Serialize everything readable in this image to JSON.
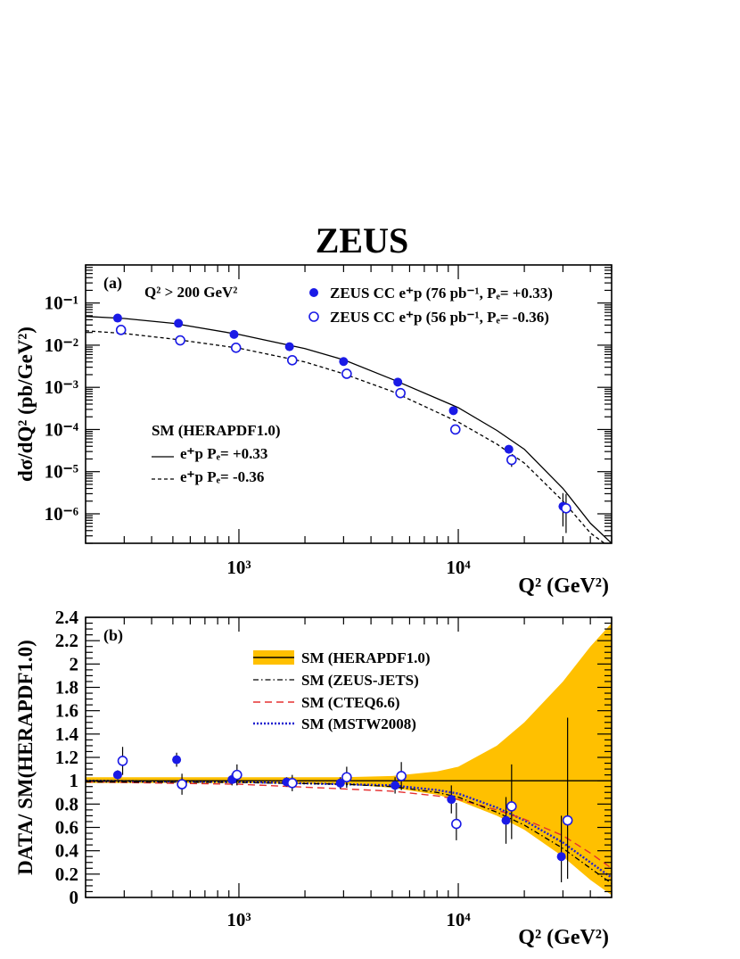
{
  "figure": {
    "title": "ZEUS"
  },
  "colors": {
    "data_marker": "#1a1ae6",
    "band_fill": "#ffc000",
    "cteq": "#e53030",
    "mstw": "#2020d0",
    "text": "#000000"
  },
  "chart_data": [
    {
      "panel": "(a)",
      "type": "scatter",
      "cut_label": "Q² > 200 GeV²",
      "xlabel": "Q² (GeV²)",
      "ylabel": "dσ/dQ² (pb/GeV²)",
      "xscale": "log",
      "yscale": "log",
      "xlim": [
        200,
        50000
      ],
      "ylim": [
        2e-07,
        0.8
      ],
      "x_tick_labels": [
        "10³",
        "10⁴"
      ],
      "y_tick_labels": [
        "10⁻⁶",
        "10⁻⁵",
        "10⁻⁴",
        "10⁻³",
        "10⁻²",
        "10⁻¹"
      ],
      "legend_data": [
        {
          "marker": "filled-circle",
          "label": "ZEUS CC e⁺p (76 pb⁻¹, Pₑ= +0.33)"
        },
        {
          "marker": "open-circle",
          "label": "ZEUS CC e⁺p (56 pb⁻¹, Pₑ= -0.36)"
        }
      ],
      "legend_sm": {
        "header": "SM (HERAPDF1.0)",
        "entries": [
          {
            "style": "solid",
            "label": "e⁺p Pₑ= +0.33"
          },
          {
            "style": "dashed",
            "label": "e⁺p Pₑ= -0.36"
          }
        ]
      },
      "series": [
        {
          "name": "ZEUS CC e⁺p (76 pb⁻¹, Pₑ= +0.33)",
          "marker": "filled",
          "x": [
            280,
            530,
            950,
            1700,
            3000,
            5300,
            9500,
            17000,
            30000
          ],
          "y": [
            0.044,
            0.033,
            0.018,
            0.0092,
            0.0041,
            0.00133,
            0.00028,
            3.4e-05,
            1.5e-06
          ],
          "err_up": [
            0,
            0,
            0,
            0,
            0,
            0,
            0,
            6e-06,
            1.6e-06
          ],
          "err_down": [
            0,
            0,
            0,
            0,
            0,
            0,
            0,
            6e-06,
            1e-06
          ]
        },
        {
          "name": "ZEUS CC e⁺p (56 pb⁻¹, Pₑ= -0.36)",
          "marker": "open",
          "x": [
            290,
            540,
            970,
            1750,
            3100,
            5450,
            9700,
            17500,
            31000
          ],
          "y": [
            0.023,
            0.013,
            0.0087,
            0.0044,
            0.0021,
            0.00073,
            0.0001,
            1.9e-05,
            1.35e-06
          ],
          "err_up": [
            0,
            0,
            0,
            0,
            0,
            0,
            2e-05,
            6e-06,
            1.6e-06
          ],
          "err_down": [
            0,
            0,
            0,
            0,
            0,
            0,
            2e-05,
            6e-06,
            1e-06
          ]
        },
        {
          "name": "e⁺p Pₑ= +0.33",
          "line": "solid",
          "x": [
            200,
            300,
            500,
            1000,
            2000,
            3000,
            5000,
            10000,
            15000,
            20000,
            30000,
            40000,
            50000
          ],
          "y": [
            0.048,
            0.043,
            0.033,
            0.018,
            0.0083,
            0.0045,
            0.00155,
            0.00033,
            9.5e-05,
            3.4e-05,
            4e-06,
            6e-07,
            2e-07
          ]
        },
        {
          "name": "e⁺p Pₑ= -0.36",
          "line": "dashed",
          "x": [
            200,
            300,
            500,
            1000,
            2000,
            3000,
            5000,
            10000,
            15000,
            20000,
            30000,
            40000,
            50000
          ],
          "y": [
            0.022,
            0.019,
            0.014,
            0.0085,
            0.004,
            0.0021,
            0.0008,
            0.00015,
            4.5e-05,
            1.6e-05,
            2e-06,
            3.5e-07,
            1.5e-07
          ]
        }
      ]
    },
    {
      "panel": "(b)",
      "type": "scatter",
      "xlabel": "Q² (GeV²)",
      "ylabel": "DATA/ SM(HERAPDF1.0)",
      "xscale": "log",
      "xlim": [
        200,
        50000
      ],
      "ylim": [
        0,
        2.4
      ],
      "x_tick_labels": [
        "10³",
        "10⁴"
      ],
      "y_tick_labels": [
        "0",
        "0.2",
        "0.4",
        "0.6",
        "0.8",
        "1",
        "1.2",
        "1.4",
        "1.6",
        "1.8",
        "2",
        "2.2",
        "2.4"
      ],
      "legend": [
        {
          "style": "band",
          "label": "SM (HERAPDF1.0)"
        },
        {
          "style": "dashdot",
          "label": "SM (ZEUS-JETS)"
        },
        {
          "style": "dashed-red",
          "label": "SM (CTEQ6.6)"
        },
        {
          "style": "dotted-blue",
          "label": "SM (MSTW2008)"
        }
      ],
      "series": [
        {
          "name": "e⁺p Pₑ= +0.33 data",
          "marker": "filled",
          "x": [
            280,
            520,
            930,
            1650,
            2900,
            5150,
            9300,
            16500,
            29500
          ],
          "y": [
            1.05,
            1.18,
            1.01,
            0.99,
            0.98,
            0.96,
            0.84,
            0.66,
            0.35
          ],
          "err_up": [
            0.04,
            0.06,
            0.05,
            0.04,
            0.05,
            0.07,
            0.12,
            0.2,
            0.35
          ],
          "err_down": [
            0.04,
            0.06,
            0.05,
            0.04,
            0.05,
            0.07,
            0.12,
            0.2,
            0.22
          ]
        },
        {
          "name": "e⁺p Pₑ= -0.36 data",
          "marker": "open",
          "x": [
            295,
            550,
            980,
            1750,
            3100,
            5500,
            9800,
            17500,
            31500
          ],
          "y": [
            1.17,
            0.97,
            1.05,
            0.98,
            1.03,
            1.04,
            0.63,
            0.78,
            0.66
          ],
          "err_up": [
            0.12,
            0.09,
            0.09,
            0.07,
            0.09,
            0.12,
            0.18,
            0.36,
            0.88
          ],
          "err_down": [
            0.12,
            0.09,
            0.09,
            0.07,
            0.09,
            0.12,
            0.14,
            0.28,
            0.5
          ]
        },
        {
          "name": "SM (HERAPDF1.0) band upper",
          "x": [
            200,
            1000,
            3000,
            5000,
            8000,
            10000,
            15000,
            20000,
            30000,
            40000,
            50000
          ],
          "y": [
            1.03,
            1.03,
            1.03,
            1.04,
            1.08,
            1.12,
            1.3,
            1.5,
            1.85,
            2.15,
            2.35
          ]
        },
        {
          "name": "SM (HERAPDF1.0) band lower",
          "x": [
            200,
            1000,
            3000,
            5000,
            8000,
            10000,
            15000,
            20000,
            30000,
            40000,
            50000
          ],
          "y": [
            0.98,
            0.98,
            0.97,
            0.94,
            0.88,
            0.83,
            0.7,
            0.58,
            0.35,
            0.15,
            0.02
          ]
        },
        {
          "name": "SM (ZEUS-JETS)",
          "line": "dashdot",
          "x": [
            200,
            1000,
            3000,
            5000,
            8000,
            10000,
            15000,
            20000,
            30000,
            40000,
            50000
          ],
          "y": [
            0.99,
            0.985,
            0.97,
            0.95,
            0.9,
            0.86,
            0.73,
            0.62,
            0.42,
            0.25,
            0.12
          ]
        },
        {
          "name": "SM (CTEQ6.6)",
          "line": "dashed-red",
          "x": [
            200,
            1000,
            3000,
            5000,
            8000,
            10000,
            15000,
            20000,
            30000,
            40000,
            50000
          ],
          "y": [
            0.99,
            0.97,
            0.93,
            0.91,
            0.87,
            0.84,
            0.75,
            0.67,
            0.53,
            0.38,
            0.25
          ]
        },
        {
          "name": "SM (MSTW2008)",
          "line": "dotted-blue",
          "x": [
            200,
            1000,
            3000,
            5000,
            8000,
            10000,
            15000,
            20000,
            30000,
            40000,
            50000
          ],
          "y": [
            1.0,
            0.99,
            0.97,
            0.96,
            0.92,
            0.89,
            0.77,
            0.66,
            0.47,
            0.3,
            0.17
          ]
        }
      ]
    }
  ]
}
